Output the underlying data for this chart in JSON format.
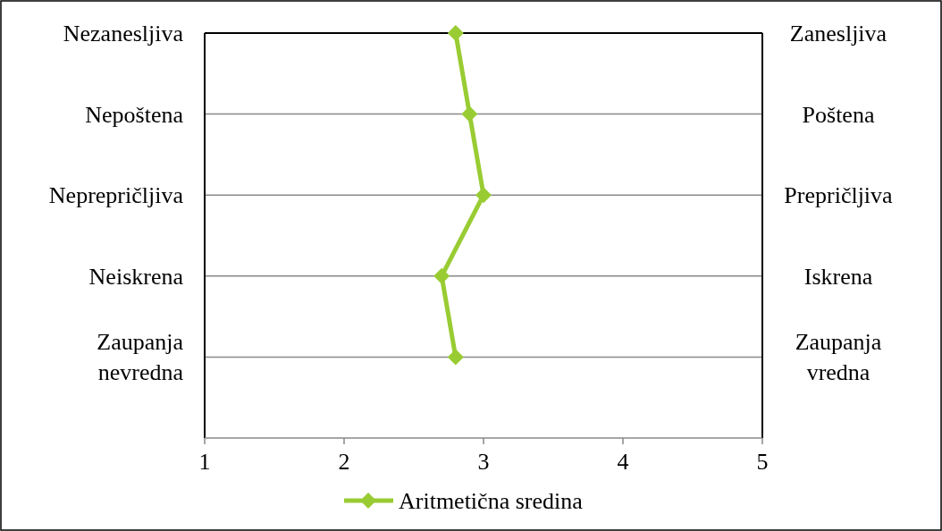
{
  "chart_data": {
    "type": "line",
    "orientation": "horizontal",
    "categories": [
      "Nezanesljiva",
      "Nepoštena",
      "Neprepričljiva",
      "Neiskrena",
      "Zaupanja nevredna",
      null
    ],
    "y2_categories": [
      "Zanesljiva",
      "Poštena",
      "Prepričljiva",
      "Iskrena",
      "Zaupanja vredna",
      null
    ],
    "series": [
      {
        "name": "Aritmetična sredina",
        "color": "#99cc33",
        "values": [
          2.8,
          2.9,
          3.0,
          2.7,
          2.8,
          null
        ]
      }
    ],
    "xlim": [
      1,
      5
    ],
    "xticks": [
      1,
      2,
      3,
      4,
      5
    ],
    "grid": true,
    "legend": "bottom",
    "marker": "diamond",
    "line_style": "solid"
  }
}
